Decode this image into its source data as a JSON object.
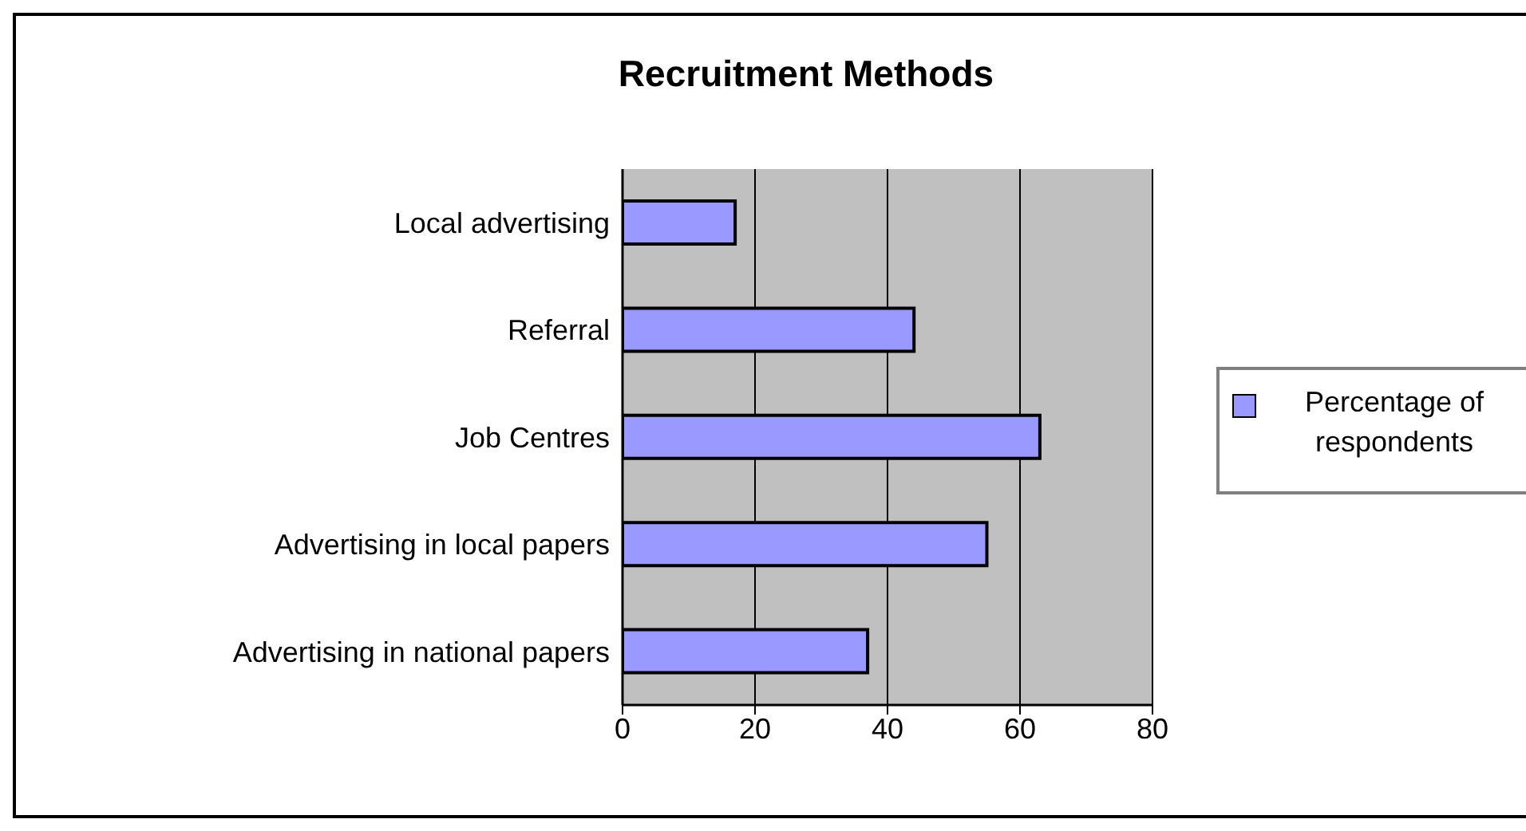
{
  "chart_data": {
    "type": "bar",
    "orientation": "horizontal",
    "title": "Recruitment Methods",
    "categories": [
      "Local advertising",
      "Referral",
      "Job Centres",
      "Advertising in local papers",
      "Advertising in national papers"
    ],
    "series": [
      {
        "name": "Percentage of respondents",
        "color": "#9999ff",
        "values": [
          17,
          44,
          63,
          55,
          37
        ]
      }
    ],
    "xlim": [
      0,
      80
    ],
    "xticks": [
      0,
      20,
      40,
      60,
      80
    ],
    "grid": "x",
    "legend": "right"
  }
}
